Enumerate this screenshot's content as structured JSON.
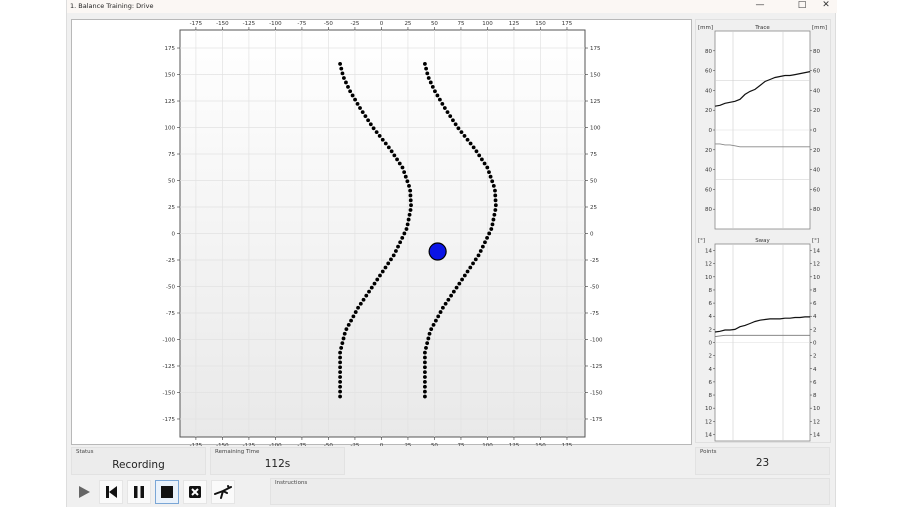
{
  "window": {
    "title": "1. Balance Training: Drive",
    "controls": [
      "minimize",
      "maximize",
      "close"
    ]
  },
  "main_plot": {
    "ticks": [
      -175,
      -150,
      -125,
      -100,
      -75,
      -50,
      -25,
      0,
      25,
      50,
      75,
      100,
      125,
      150,
      175
    ],
    "xlim": [
      -190,
      192
    ],
    "ylim": [
      -192,
      192
    ],
    "tracks": [
      {
        "name": "left-boundary",
        "points": [
          [
            -39,
            160
          ],
          [
            -36,
            148
          ],
          [
            -30,
            135
          ],
          [
            -20,
            118
          ],
          [
            -8,
            100
          ],
          [
            8,
            80
          ],
          [
            20,
            62
          ],
          [
            27,
            42
          ],
          [
            28,
            25
          ],
          [
            24,
            5
          ],
          [
            12,
            -20
          ],
          [
            -5,
            -45
          ],
          [
            -22,
            -70
          ],
          [
            -34,
            -92
          ],
          [
            -39,
            -112
          ],
          [
            -39,
            -156
          ]
        ]
      },
      {
        "name": "right-boundary",
        "points": [
          [
            41,
            160
          ],
          [
            44,
            148
          ],
          [
            50,
            135
          ],
          [
            60,
            118
          ],
          [
            72,
            100
          ],
          [
            88,
            80
          ],
          [
            100,
            62
          ],
          [
            107,
            42
          ],
          [
            108,
            25
          ],
          [
            104,
            5
          ],
          [
            92,
            -20
          ],
          [
            75,
            -45
          ],
          [
            58,
            -70
          ],
          [
            46,
            -92
          ],
          [
            41,
            -112
          ],
          [
            41,
            -156
          ]
        ]
      }
    ],
    "cursor": {
      "x": 53,
      "y": -17,
      "color": "#0a14e6"
    }
  },
  "trace_chart": {
    "type": "line",
    "title": "Trace",
    "unit_left": "[mm]",
    "unit_right": "[mm]",
    "tick_labels": [
      "80",
      "60",
      "40",
      "20",
      "0",
      "20",
      "40",
      "60",
      "80"
    ],
    "tick_values": [
      80,
      60,
      40,
      20,
      0,
      -20,
      -40,
      -60,
      -80
    ],
    "ylim": [
      -100,
      100
    ],
    "guides": [
      50,
      -50
    ],
    "series": [
      {
        "color": "#111111",
        "values": [
          24,
          25,
          27,
          28,
          29,
          31,
          36,
          39,
          41,
          45,
          49,
          51,
          53,
          54,
          55,
          55,
          56,
          57,
          58,
          59
        ]
      },
      {
        "color": "#888888",
        "values": [
          -14,
          -14,
          -15,
          -15,
          -16,
          -17,
          -17,
          -17,
          -17,
          -17,
          -17,
          -17,
          -17,
          -17,
          -17,
          -17,
          -17,
          -17,
          -17,
          -17
        ]
      }
    ]
  },
  "sway_chart": {
    "type": "line",
    "title": "Sway",
    "unit_left": "[°]",
    "unit_right": "[°]",
    "tick_labels": [
      "14",
      "12",
      "10",
      "8",
      "6",
      "4",
      "2",
      "0",
      "2",
      "4",
      "6",
      "8",
      "10",
      "12",
      "14"
    ],
    "tick_values": [
      14,
      12,
      10,
      8,
      6,
      4,
      2,
      0,
      -2,
      -4,
      -6,
      -8,
      -10,
      -12,
      -14
    ],
    "ylim": [
      -15,
      15
    ],
    "series": [
      {
        "color": "#111111",
        "values": [
          1.6,
          1.7,
          1.9,
          1.9,
          2.0,
          2.4,
          2.6,
          2.9,
          3.2,
          3.4,
          3.5,
          3.6,
          3.6,
          3.6,
          3.7,
          3.7,
          3.8,
          3.8,
          3.9,
          3.9
        ]
      },
      {
        "color": "#777777",
        "values": [
          0.9,
          1.0,
          1.1,
          1.1,
          1.1,
          1.1,
          1.1,
          1.1,
          1.1,
          1.1,
          1.1,
          1.1,
          1.1,
          1.1,
          1.1,
          1.1,
          1.1,
          1.1,
          1.1,
          1.1
        ]
      }
    ]
  },
  "status": {
    "label": "Status",
    "value": "Recording"
  },
  "remaining": {
    "label": "Remaining Time",
    "value": "112s"
  },
  "points": {
    "label": "Points",
    "value": "23"
  },
  "instructions": {
    "label": "Instructions",
    "value": ""
  },
  "toolbar": [
    "play",
    "skip-back",
    "pause",
    "stop",
    "fullscreen-exit",
    "balance-figure"
  ],
  "toolbar_selected": "stop"
}
